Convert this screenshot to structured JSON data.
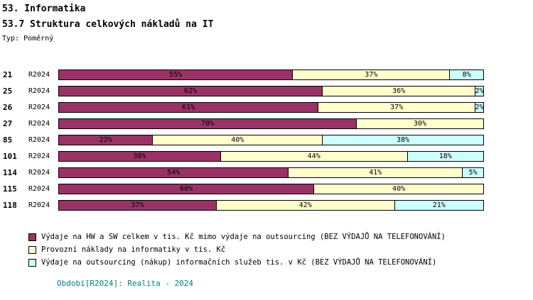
{
  "title": "53. Informatika",
  "subtitle": "53.7 Struktura celkových nákladů na IT",
  "type_label": "Typ: Poměrný",
  "footer": "Období[R2024]: Realita - 2024",
  "colors": {
    "hw_sw": "#993366",
    "provozni": "#FFFFCC",
    "outsourcing": "#CCFFFF",
    "footer_text": "#008080"
  },
  "chart_data": {
    "type": "bar",
    "orientation": "horizontal",
    "stacked": true,
    "unit": "%",
    "xlim": [
      0,
      100
    ],
    "period_label": "R2024",
    "categories": [
      "21",
      "25",
      "26",
      "27",
      "85",
      "101",
      "114",
      "115",
      "118"
    ],
    "series": [
      {
        "name": "Výdaje na HW a SW celkem v tis. Kč mimo výdaje na outsourcing (BEZ VÝDAJŮ NA TELEFONOVÁNÍ)",
        "color": "#993366",
        "values": [
          55,
          62,
          61,
          70,
          22,
          38,
          54,
          60,
          37
        ]
      },
      {
        "name": "Provozní náklady na informatiky v tis. Kč",
        "color": "#FFFFCC",
        "values": [
          37,
          36,
          37,
          30,
          40,
          44,
          41,
          40,
          42
        ]
      },
      {
        "name": "Výdaje na outsourcing (nákup) informačních služeb tis. v Kč (BEZ VÝDAJŮ NA TELEFONOVÁNÍ)",
        "color": "#CCFFFF",
        "values": [
          8,
          2,
          2,
          0,
          38,
          18,
          5,
          0,
          21
        ]
      }
    ],
    "legend_position": "bottom-left",
    "grid": false
  }
}
